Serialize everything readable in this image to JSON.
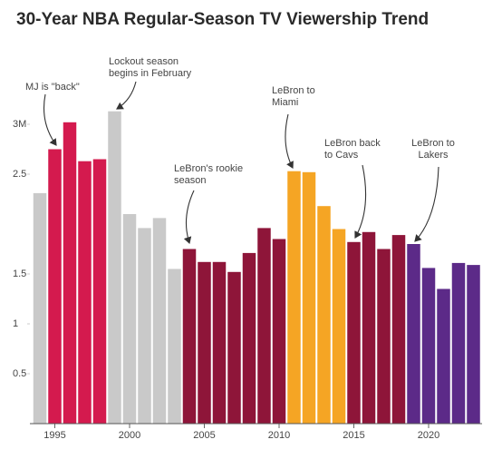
{
  "chart_data": {
    "type": "bar",
    "title": "30-Year NBA Regular-Season TV Viewership Trend",
    "categories": [
      null,
      "1995",
      null,
      null,
      null,
      null,
      "2000",
      null,
      null,
      null,
      null,
      "2005",
      null,
      null,
      null,
      null,
      "2010",
      null,
      null,
      null,
      null,
      "2015",
      null,
      null,
      null,
      null,
      "2020",
      null,
      null,
      null
    ],
    "values": [
      2.31,
      2.75,
      3.02,
      2.63,
      2.65,
      3.13,
      2.1,
      1.96,
      2.06,
      1.55,
      1.75,
      1.62,
      1.62,
      1.52,
      1.71,
      1.96,
      1.85,
      2.53,
      2.52,
      2.18,
      1.95,
      1.82,
      1.92,
      1.75,
      1.89,
      1.8,
      1.56,
      1.35,
      1.61,
      1.59
    ],
    "colors": [
      "#c9c9c9",
      "#d41a4e",
      "#d41a4e",
      "#d41a4e",
      "#d41a4e",
      "#c9c9c9",
      "#c9c9c9",
      "#c9c9c9",
      "#c9c9c9",
      "#c9c9c9",
      "#8e1539",
      "#8e1539",
      "#8e1539",
      "#8e1539",
      "#8e1539",
      "#8e1539",
      "#8e1539",
      "#f5a524",
      "#f5a524",
      "#f5a524",
      "#f5a524",
      "#8e1539",
      "#8e1539",
      "#8e1539",
      "#8e1539",
      "#5c2a88",
      "#5c2a88",
      "#5c2a88",
      "#5c2a88",
      "#5c2a88"
    ],
    "ylim": [
      0,
      3.3
    ],
    "yticks": [
      0.5,
      1,
      1.5,
      2.5,
      {
        "value": 3,
        "label": "3M"
      }
    ],
    "annotations": [
      {
        "lines": [
          "MJ is \"back\""
        ]
      },
      {
        "lines": [
          "Lockout season",
          "begins in February"
        ]
      },
      {
        "lines": [
          "LeBron's rookie",
          "season"
        ]
      },
      {
        "lines": [
          "LeBron to",
          "Miami"
        ]
      },
      {
        "lines": [
          "LeBron back",
          "to Cavs"
        ]
      },
      {
        "lines": [
          "LeBron to",
          "Lakers"
        ]
      }
    ]
  }
}
